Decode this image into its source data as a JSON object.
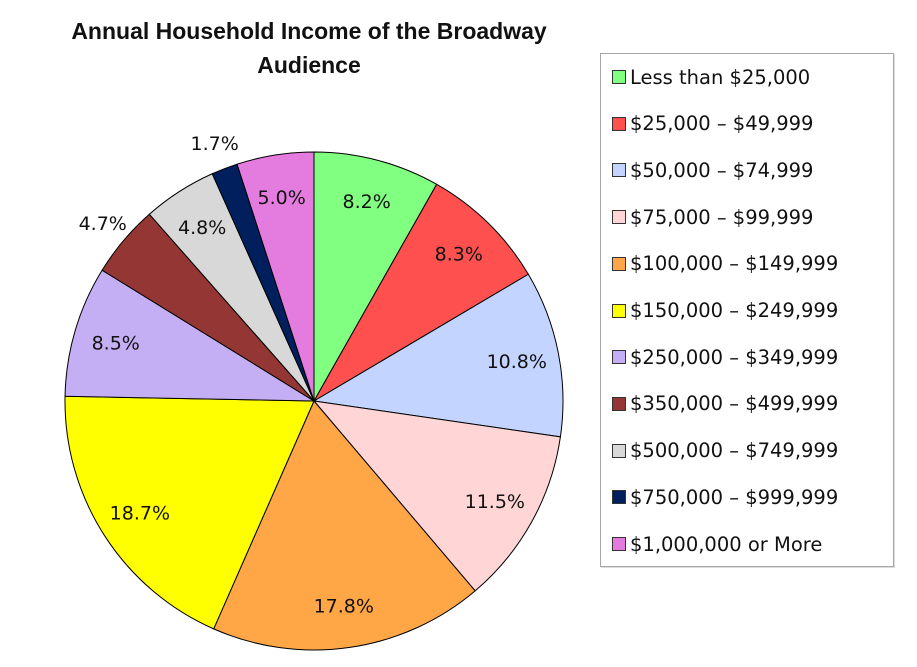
{
  "chart_data": {
    "type": "pie",
    "title": "Annual Household Income of the Broadway Audience",
    "start_angle": "top, clockwise",
    "legend_position": "right",
    "slices": [
      {
        "label": "Less than $25,000",
        "value": 8.2,
        "display": "8.2%",
        "color": "#80FF80"
      },
      {
        "label": "$25,000 – $49,999",
        "value": 8.3,
        "display": "8.3%",
        "color": "#FF5050"
      },
      {
        "label": "$50,000 – $74,999",
        "value": 10.8,
        "display": "10.8%",
        "color": "#C2D4FF"
      },
      {
        "label": "$75,000 – $99,999",
        "value": 11.5,
        "display": "11.5%",
        "color": "#FFD5D5"
      },
      {
        "label": "$100,000 – $149,999",
        "value": 17.8,
        "display": "17.8%",
        "color": "#FFA646"
      },
      {
        "label": "$150,000 – $249,999",
        "value": 18.7,
        "display": "18.7%",
        "color": "#FFFF00"
      },
      {
        "label": "$250,000 – $349,999",
        "value": 8.5,
        "display": "8.5%",
        "color": "#C4AEF4"
      },
      {
        "label": "$350,000 – $499,999",
        "value": 4.7,
        "display": "4.7%",
        "color": "#943634"
      },
      {
        "label": "$500,000 – $749,999",
        "value": 4.8,
        "display": "4.8%",
        "color": "#D8D8D8"
      },
      {
        "label": "$750,000 – $999,999",
        "value": 1.7,
        "display": "1.7%",
        "color": "#001F5C"
      },
      {
        "label": "$1,000,000 or More",
        "value": 5.0,
        "display": "5.0%",
        "color": "#E47BDF"
      }
    ]
  }
}
